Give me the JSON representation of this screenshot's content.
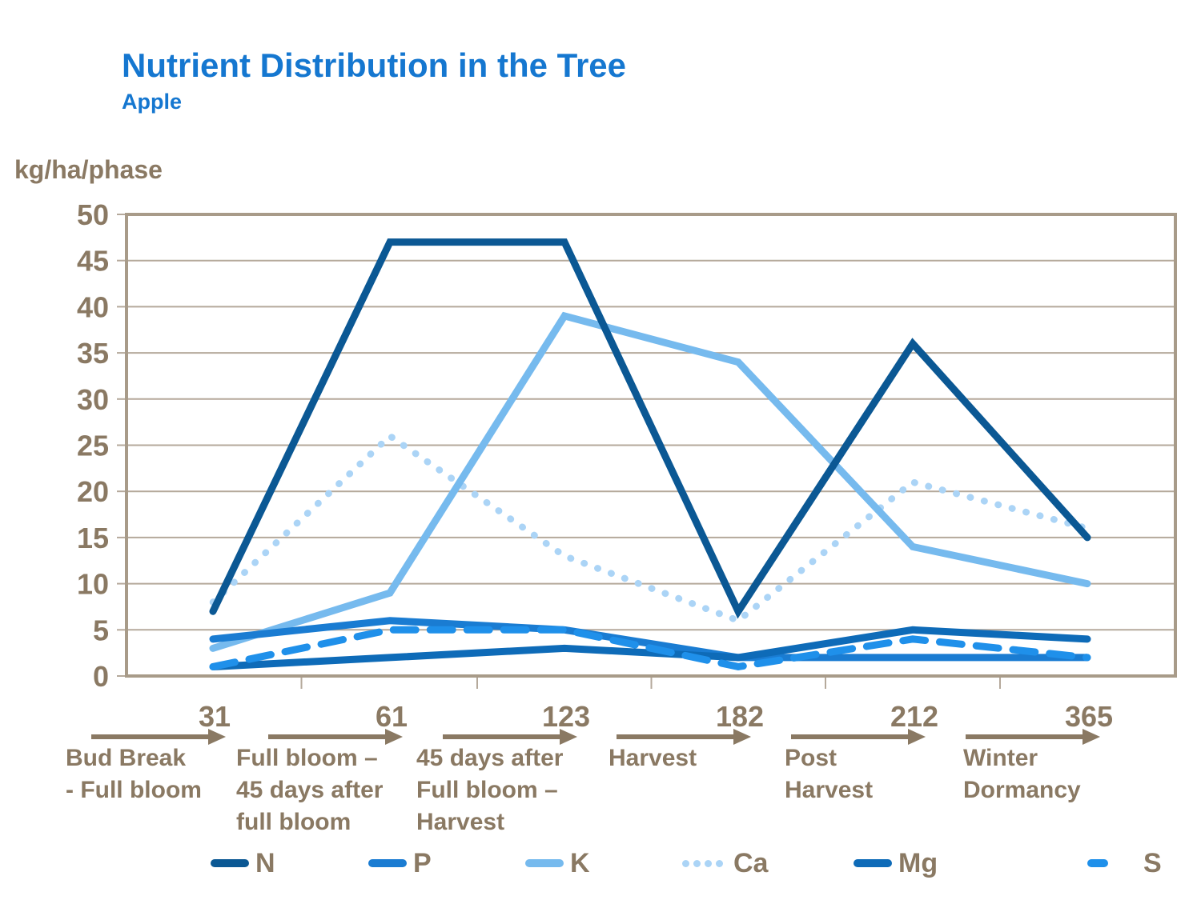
{
  "header": {
    "title": "Nutrient Distribution in the Tree",
    "subtitle": "Apple"
  },
  "colors": {
    "title_blue": "#1577D0",
    "axis_text_brown": "#8A7963",
    "gridline": "#B5A99B",
    "plot_border": "#A89B89",
    "background": "#FFFFFF"
  },
  "chart_data": {
    "type": "line",
    "title": "Nutrient Distribution in the Tree",
    "subtitle": "Apple",
    "ylabel": "kg/ha/phase",
    "xlabel": "",
    "ylim": [
      0,
      50
    ],
    "ytick_step": 5,
    "grid": true,
    "legend_position": "bottom",
    "categories": [
      "31",
      "61",
      "123",
      "182",
      "212",
      "365"
    ],
    "phases": [
      {
        "end_day": "31",
        "label_lines": [
          "Bud Break",
          "- Full bloom"
        ]
      },
      {
        "end_day": "61",
        "label_lines": [
          "Full bloom –",
          "45 days after",
          "full bloom"
        ]
      },
      {
        "end_day": "123",
        "label_lines": [
          "45 days after",
          "Full bloom –",
          "Harvest"
        ]
      },
      {
        "end_day": "182",
        "label_lines": [
          "Harvest"
        ]
      },
      {
        "end_day": "212",
        "label_lines": [
          "Post",
          "Harvest"
        ]
      },
      {
        "end_day": "365",
        "label_lines": [
          "Winter",
          "Dormancy"
        ]
      }
    ],
    "series": [
      {
        "name": "N",
        "values": [
          7,
          47,
          47,
          7,
          36,
          15
        ],
        "color": "#0B5894",
        "style": "solid"
      },
      {
        "name": "P",
        "values": [
          4,
          6,
          5,
          2,
          2,
          2
        ],
        "color": "#1A7CD2",
        "style": "solid"
      },
      {
        "name": "K",
        "values": [
          3,
          9,
          39,
          34,
          14,
          10
        ],
        "color": "#76BAEE",
        "style": "solid"
      },
      {
        "name": "Ca",
        "values": [
          8,
          26,
          13,
          6,
          21,
          16
        ],
        "color": "#ABD4F6",
        "style": "dotted"
      },
      {
        "name": "Mg",
        "values": [
          1,
          2,
          3,
          2,
          5,
          4
        ],
        "color": "#0E6BB8",
        "style": "solid"
      },
      {
        "name": "S",
        "values": [
          1,
          5,
          5,
          1,
          4,
          2
        ],
        "color": "#1F90EA",
        "style": "dashed"
      }
    ]
  }
}
